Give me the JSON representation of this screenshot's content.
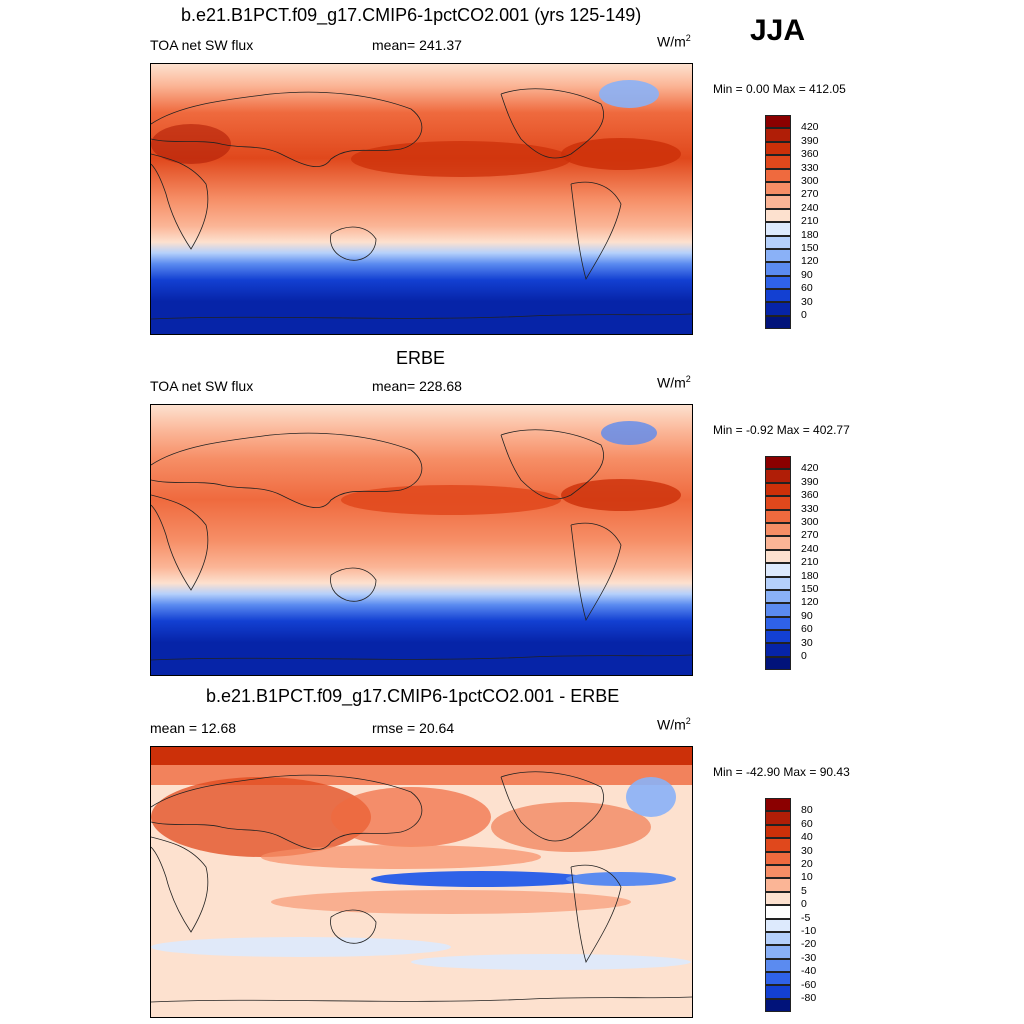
{
  "season": "JJA",
  "panels": [
    {
      "title": "b.e21.B1PCT.f09_g17.CMIP6-1pctCO2.001 (yrs 125-149)",
      "left_label": "TOA net SW flux",
      "center_label": "mean= 241.37",
      "units_base": "W/m",
      "units_sup": "2",
      "minmax": "Min =   0.00 Max = 412.05",
      "colorbar": {
        "labels": [
          "420",
          "390",
          "360",
          "330",
          "300",
          "270",
          "240",
          "210",
          "180",
          "150",
          "120",
          "90",
          "60",
          "30",
          "0"
        ],
        "colors": [
          "#8b0000",
          "#b01e07",
          "#cc3009",
          "#e0481c",
          "#ef6a3e",
          "#f68e66",
          "#fbb596",
          "#fde1cf",
          "#ddeafd",
          "#b5d0fb",
          "#8ab1f7",
          "#5b8bf0",
          "#2f62e8",
          "#1340d2",
          "#0624a8",
          "#01137a"
        ]
      }
    },
    {
      "title": "ERBE",
      "left_label": "TOA net SW flux",
      "center_label": "mean= 228.68",
      "units_base": "W/m",
      "units_sup": "2",
      "minmax": "Min =  -0.92 Max = 402.77",
      "colorbar": {
        "labels": [
          "420",
          "390",
          "360",
          "330",
          "300",
          "270",
          "240",
          "210",
          "180",
          "150",
          "120",
          "90",
          "60",
          "30",
          "0"
        ],
        "colors": [
          "#8b0000",
          "#b01e07",
          "#cc3009",
          "#e0481c",
          "#ef6a3e",
          "#f68e66",
          "#fbb596",
          "#fde1cf",
          "#ddeafd",
          "#b5d0fb",
          "#8ab1f7",
          "#5b8bf0",
          "#2f62e8",
          "#1340d2",
          "#0624a8",
          "#01137a"
        ]
      }
    },
    {
      "title": "b.e21.B1PCT.f09_g17.CMIP6-1pctCO2.001 - ERBE",
      "left_label": "mean =  12.68",
      "center_label": "rmse =  20.64",
      "units_base": "W/m",
      "units_sup": "2",
      "minmax": "Min = -42.90 Max =  90.43",
      "colorbar": {
        "labels": [
          "80",
          "60",
          "40",
          "30",
          "20",
          "10",
          "5",
          "0",
          "-5",
          "-10",
          "-20",
          "-30",
          "-40",
          "-60",
          "-80"
        ],
        "colors": [
          "#8b0000",
          "#b01e07",
          "#cc3009",
          "#e0481c",
          "#ef6a3e",
          "#f68e66",
          "#fbb596",
          "#fde1cf",
          "#ffffff",
          "#ddeafd",
          "#b5d0fb",
          "#8ab1f7",
          "#5b8bf0",
          "#2f62e8",
          "#1340d2",
          "#01137a"
        ]
      }
    }
  ]
}
